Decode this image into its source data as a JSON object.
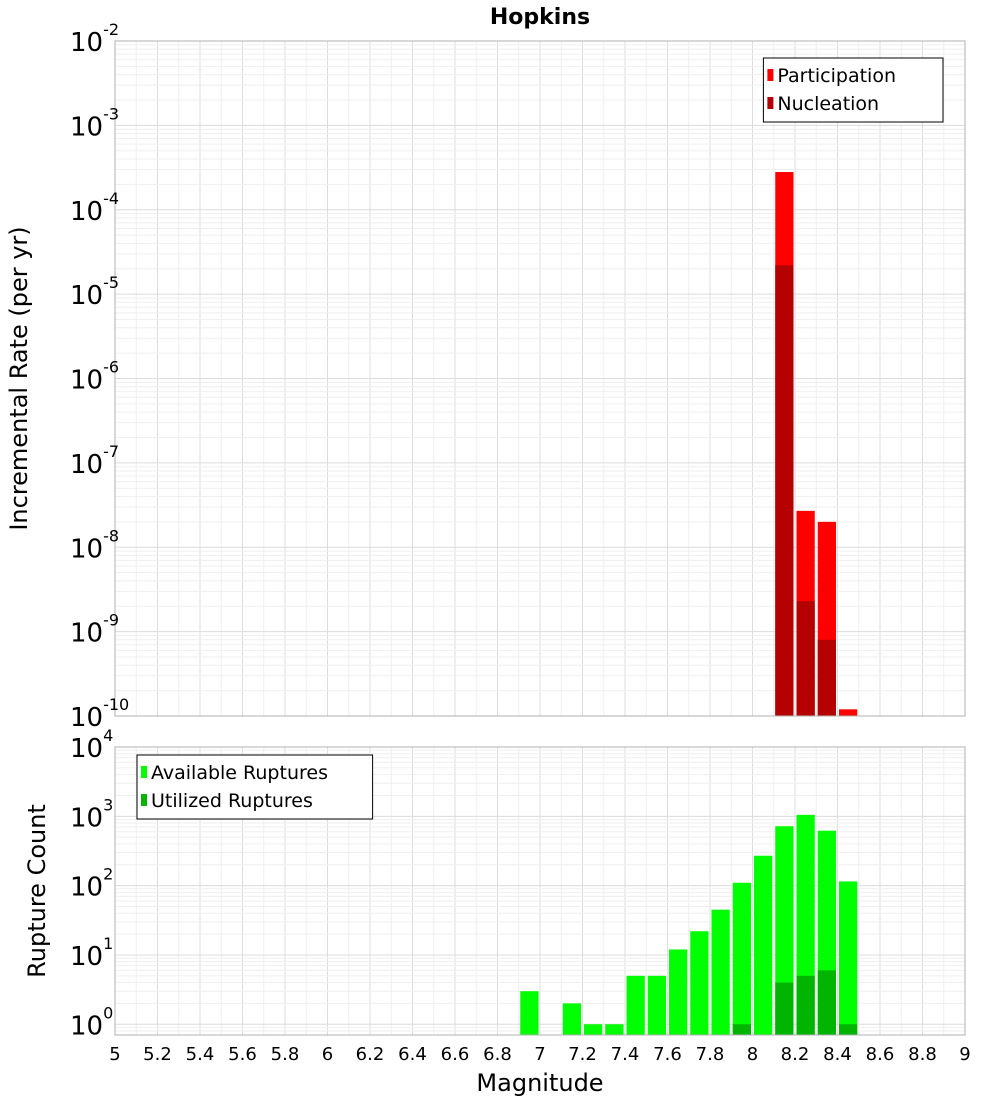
{
  "chart_data": [
    {
      "type": "bar",
      "title": "Hopkins",
      "xlabel": "",
      "ylabel": "Incremental Rate (per yr)",
      "yscale": "log",
      "ylim": [
        1e-10,
        0.01
      ],
      "xlim": [
        5,
        9
      ],
      "y_ticks": [
        {
          "base": "10",
          "exp": "-10"
        },
        {
          "base": "10",
          "exp": "-9"
        },
        {
          "base": "10",
          "exp": "-8"
        },
        {
          "base": "10",
          "exp": "-7"
        },
        {
          "base": "10",
          "exp": "-6"
        },
        {
          "base": "10",
          "exp": "-5"
        },
        {
          "base": "10",
          "exp": "-4"
        },
        {
          "base": "10",
          "exp": "-3"
        },
        {
          "base": "10",
          "exp": "-2"
        }
      ],
      "bar_width": 0.1,
      "legend": {
        "position": "top-right"
      },
      "series": [
        {
          "name": "Participation",
          "color": "#ff0000",
          "x": [
            8.15,
            8.25,
            8.35,
            8.45
          ],
          "values": [
            0.00028,
            2.7e-08,
            2e-08,
            1.2e-10
          ]
        },
        {
          "name": "Nucleation",
          "color": "#b40000",
          "x": [
            8.15,
            8.25,
            8.35
          ],
          "values": [
            2.2e-05,
            2.3e-09,
            8e-10
          ]
        }
      ]
    },
    {
      "type": "bar",
      "title": "",
      "xlabel": "Magnitude",
      "ylabel": "Rupture Count",
      "yscale": "log",
      "ylim": [
        0.7,
        10000
      ],
      "xlim": [
        5,
        9
      ],
      "x_ticks": [
        "5",
        "5.2",
        "5.4",
        "5.6",
        "5.8",
        "6",
        "6.2",
        "6.4",
        "6.6",
        "6.8",
        "7",
        "7.2",
        "7.4",
        "7.6",
        "7.8",
        "8",
        "8.2",
        "8.4",
        "8.6",
        "8.8",
        "9"
      ],
      "y_ticks": [
        {
          "base": "10",
          "exp": "0"
        },
        {
          "base": "10",
          "exp": "1"
        },
        {
          "base": "10",
          "exp": "2"
        },
        {
          "base": "10",
          "exp": "3"
        },
        {
          "base": "10",
          "exp": "4"
        }
      ],
      "bar_width": 0.1,
      "legend": {
        "position": "top-left"
      },
      "series": [
        {
          "name": "Available Ruptures",
          "color": "#00ff00",
          "x": [
            6.95,
            7.15,
            7.25,
            7.35,
            7.45,
            7.55,
            7.65,
            7.75,
            7.85,
            7.95,
            8.05,
            8.15,
            8.25,
            8.35,
            8.45
          ],
          "values": [
            3,
            2,
            1,
            1,
            5,
            5,
            12,
            22,
            45,
            110,
            270,
            720,
            1050,
            620,
            115
          ]
        },
        {
          "name": "Utilized Ruptures",
          "color": "#00b400",
          "x": [
            7.95,
            8.15,
            8.25,
            8.35,
            8.45
          ],
          "values": [
            1,
            4,
            5,
            6,
            1
          ]
        }
      ]
    }
  ]
}
